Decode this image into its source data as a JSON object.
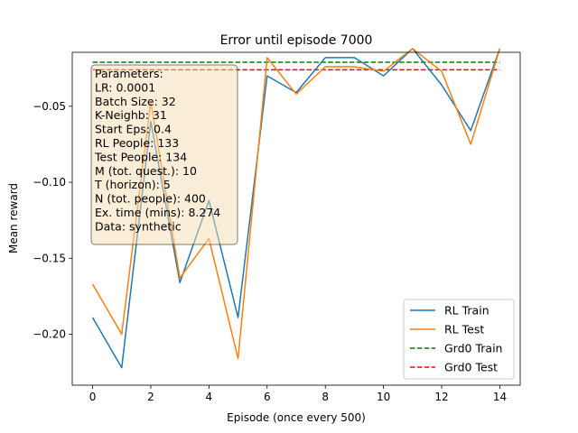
{
  "chart_data": {
    "type": "line",
    "title": "Error until episode 7000",
    "xlabel": "Episode (once every 500)",
    "ylabel": "Mean reward",
    "xlim": [
      -0.7,
      14.7
    ],
    "ylim": [
      -0.2335,
      -0.0145
    ],
    "xticks": [
      0,
      2,
      4,
      6,
      8,
      10,
      12,
      14
    ],
    "xtick_labels": [
      "0",
      "2",
      "4",
      "6",
      "8",
      "10",
      "12",
      "14"
    ],
    "yticks": [
      -0.05,
      -0.1,
      -0.15,
      -0.2
    ],
    "ytick_labels": [
      "−0.05",
      "−0.10",
      "−0.15",
      "−0.20"
    ],
    "x": [
      0,
      1,
      2,
      3,
      4,
      5,
      6,
      7,
      8,
      9,
      10,
      11,
      12,
      13,
      14
    ],
    "series": [
      {
        "name": "RL Train",
        "color": "#1f77b4",
        "style": "solid",
        "values": [
          -0.189,
          -0.222,
          -0.06,
          -0.166,
          -0.112,
          -0.189,
          -0.03,
          -0.041,
          -0.018,
          -0.018,
          -0.03,
          -0.012,
          -0.036,
          -0.066,
          -0.012
        ]
      },
      {
        "name": "RL Test",
        "color": "#ff7f0e",
        "style": "solid",
        "values": [
          -0.167,
          -0.2,
          -0.047,
          -0.163,
          -0.137,
          -0.216,
          -0.018,
          -0.042,
          -0.024,
          -0.024,
          -0.027,
          -0.012,
          -0.027,
          -0.075,
          -0.012
        ]
      },
      {
        "name": "Grd0 Train",
        "color": "#008000",
        "style": "dashed",
        "constant": -0.021
      },
      {
        "name": "Grd0 Test",
        "color": "#ff0000",
        "style": "dashed",
        "constant": -0.026
      }
    ],
    "legend_position": "lower-right",
    "grid": false,
    "annotation": {
      "lines": [
        "Parameters:",
        "LR: 0.0001",
        "Batch Size: 32",
        "K-Neighb: 31",
        "Start Eps: 0.4",
        "RL People: 133",
        "Test People: 134",
        "M (tot. quest.): 10",
        "T (horizon): 5",
        "N (tot. people): 400",
        "Ex. time (mins): 8.274",
        "Data: synthetic"
      ],
      "box_fill": "#f5deb3",
      "position": "upper-left"
    }
  }
}
